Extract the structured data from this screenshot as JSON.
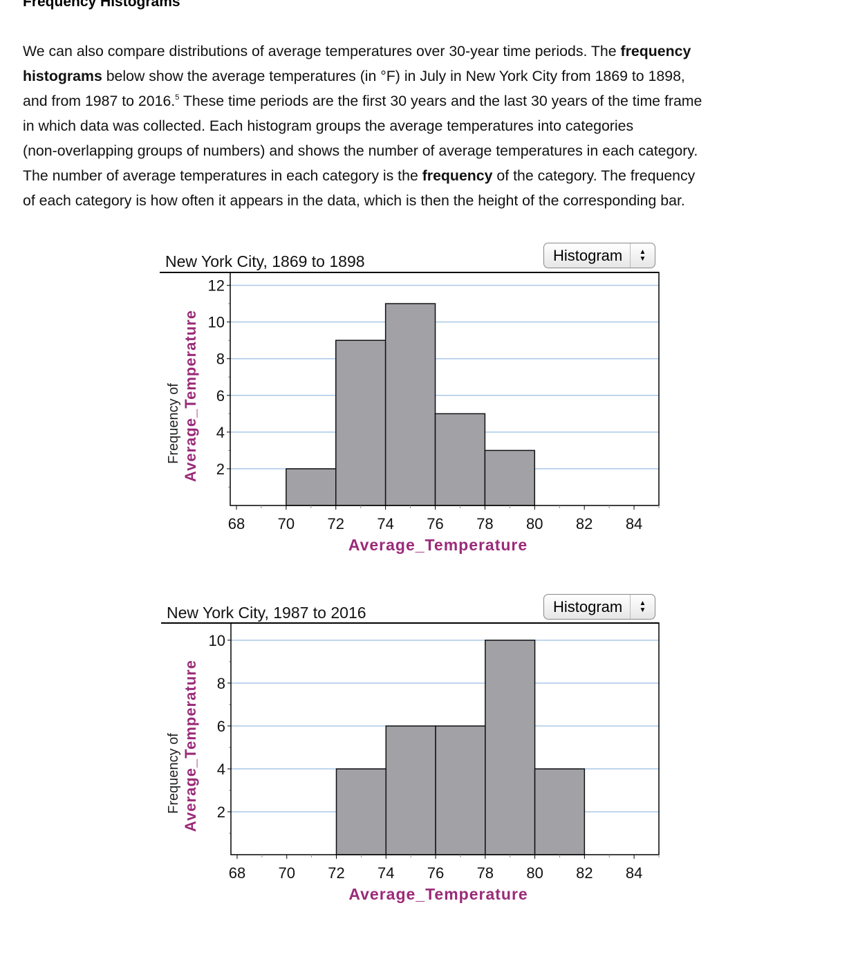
{
  "heading": "Frequency Histograms",
  "paragraph_lines": [
    [
      {
        "t": "We can also compare distributions of average temperatures over 30-year time periods. The "
      },
      {
        "t": "frequency",
        "b": true
      }
    ],
    [
      {
        "t": "histograms",
        "b": true
      },
      {
        "t": " below show the average temperatures (in °F) in July in New York City from 1869 to 1898,"
      }
    ],
    [
      {
        "t": "and from 1987 to 2016."
      },
      {
        "t": "5",
        "sup": true
      },
      {
        "t": " These time periods are the first 30 years and the last 30 years of the time frame"
      }
    ],
    [
      {
        "t": "in which data was collected. Each histogram groups the average temperatures into categories"
      }
    ],
    [
      {
        "t": "(non-overlapping groups of numbers) and shows the number of average temperatures in each category."
      }
    ],
    [
      {
        "t": "The number of average temperatures in each category is the "
      },
      {
        "t": "frequency",
        "b": true
      },
      {
        "t": " of the category. The frequency"
      }
    ],
    [
      {
        "t": "of each category is how often it appears in the data, which is then the height of the corresponding bar."
      }
    ]
  ],
  "colors": {
    "bar": "#a2a1a6",
    "grid": "#a9c8e8",
    "axis_label": "#9a2a78"
  },
  "chart_data": [
    {
      "type": "bar",
      "title": "New York City, 1869 to 1898",
      "dropdown": "Histogram",
      "xlabel": "Average_Temperature",
      "ylabel_line1": "Frequency of",
      "ylabel_line2": "Average_Temperature",
      "xlim": [
        67.75,
        85
      ],
      "ylim": [
        0,
        12.7
      ],
      "xticks": [
        68,
        70,
        72,
        74,
        76,
        78,
        80,
        82,
        84
      ],
      "yticks": [
        2,
        4,
        6,
        8,
        10,
        12
      ],
      "grid": true,
      "bins": [
        [
          70,
          72
        ],
        [
          72,
          74
        ],
        [
          74,
          76
        ],
        [
          76,
          78
        ],
        [
          78,
          80
        ]
      ],
      "values": [
        2,
        9,
        11,
        5,
        3
      ]
    },
    {
      "type": "bar",
      "title": "New York City, 1987 to 2016",
      "dropdown": "Histogram",
      "xlabel": "Average_Temperature",
      "ylabel_line1": "Frequency of",
      "ylabel_line2": "Average_Temperature",
      "xlim": [
        67.75,
        85
      ],
      "ylim": [
        0,
        10.8
      ],
      "xticks": [
        68,
        70,
        72,
        74,
        76,
        78,
        80,
        82,
        84
      ],
      "yticks": [
        2,
        4,
        6,
        8,
        10
      ],
      "grid": true,
      "bins": [
        [
          72,
          74
        ],
        [
          74,
          76
        ],
        [
          76,
          78
        ],
        [
          78,
          80
        ],
        [
          80,
          82
        ]
      ],
      "values": [
        4,
        6,
        6,
        10,
        4
      ]
    }
  ]
}
